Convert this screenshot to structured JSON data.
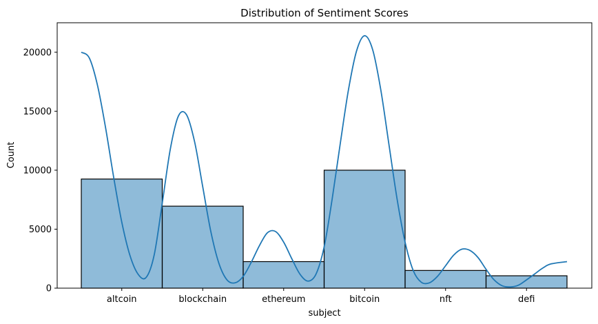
{
  "chart_data": {
    "type": "bar",
    "title": "Distribution of Sentiment Scores",
    "xlabel": "subject",
    "ylabel": "Count",
    "categories": [
      "altcoin",
      "blockchain",
      "ethereum",
      "bitcoin",
      "nft",
      "defi"
    ],
    "values": [
      9250,
      6950,
      2250,
      10000,
      1500,
      1050
    ],
    "ylim": [
      0,
      22500
    ],
    "yticks": [
      0,
      5000,
      10000,
      15000,
      20000
    ],
    "ytick_labels": [
      "0",
      "5000",
      "10000",
      "15000",
      "20000"
    ],
    "grid": false,
    "legend": "none",
    "kde": {
      "x": [
        -0.5,
        -0.4,
        -0.3,
        -0.2,
        -0.1,
        0.0,
        0.1,
        0.2,
        0.3,
        0.4,
        0.5,
        0.6,
        0.7,
        0.8,
        0.9,
        1.0,
        1.1,
        1.2,
        1.3,
        1.4,
        1.5,
        1.6,
        1.7,
        1.8,
        1.9,
        2.0,
        2.1,
        2.2,
        2.3,
        2.4,
        2.5,
        2.6,
        2.7,
        2.8,
        2.9,
        3.0,
        3.1,
        3.2,
        3.3,
        3.4,
        3.5,
        3.6,
        3.7,
        3.8,
        3.9,
        4.0,
        4.1,
        4.2,
        4.3,
        4.4,
        4.5,
        4.6,
        4.7,
        4.8,
        4.9,
        5.0,
        5.1,
        5.2,
        5.3,
        5.5
      ],
      "y": [
        20000,
        19500,
        17200,
        13600,
        9400,
        5600,
        2800,
        1200,
        900,
        2800,
        7200,
        11800,
        14600,
        14700,
        12400,
        8600,
        4800,
        2100,
        700,
        450,
        1000,
        2200,
        3600,
        4700,
        4800,
        3900,
        2500,
        1200,
        600,
        1200,
        3500,
        7600,
        12300,
        16800,
        20100,
        21400,
        20200,
        16800,
        12200,
        7600,
        3900,
        1500,
        500,
        450,
        1000,
        1900,
        2800,
        3300,
        3200,
        2600,
        1600,
        700,
        200,
        100,
        250,
        700,
        1200,
        1700,
        2050,
        2250
      ],
      "color": "#1f77b4"
    },
    "colors": {
      "bar_fill": "#1f77b4",
      "bar_alpha": 0.5,
      "bar_edge": "#000000"
    }
  }
}
